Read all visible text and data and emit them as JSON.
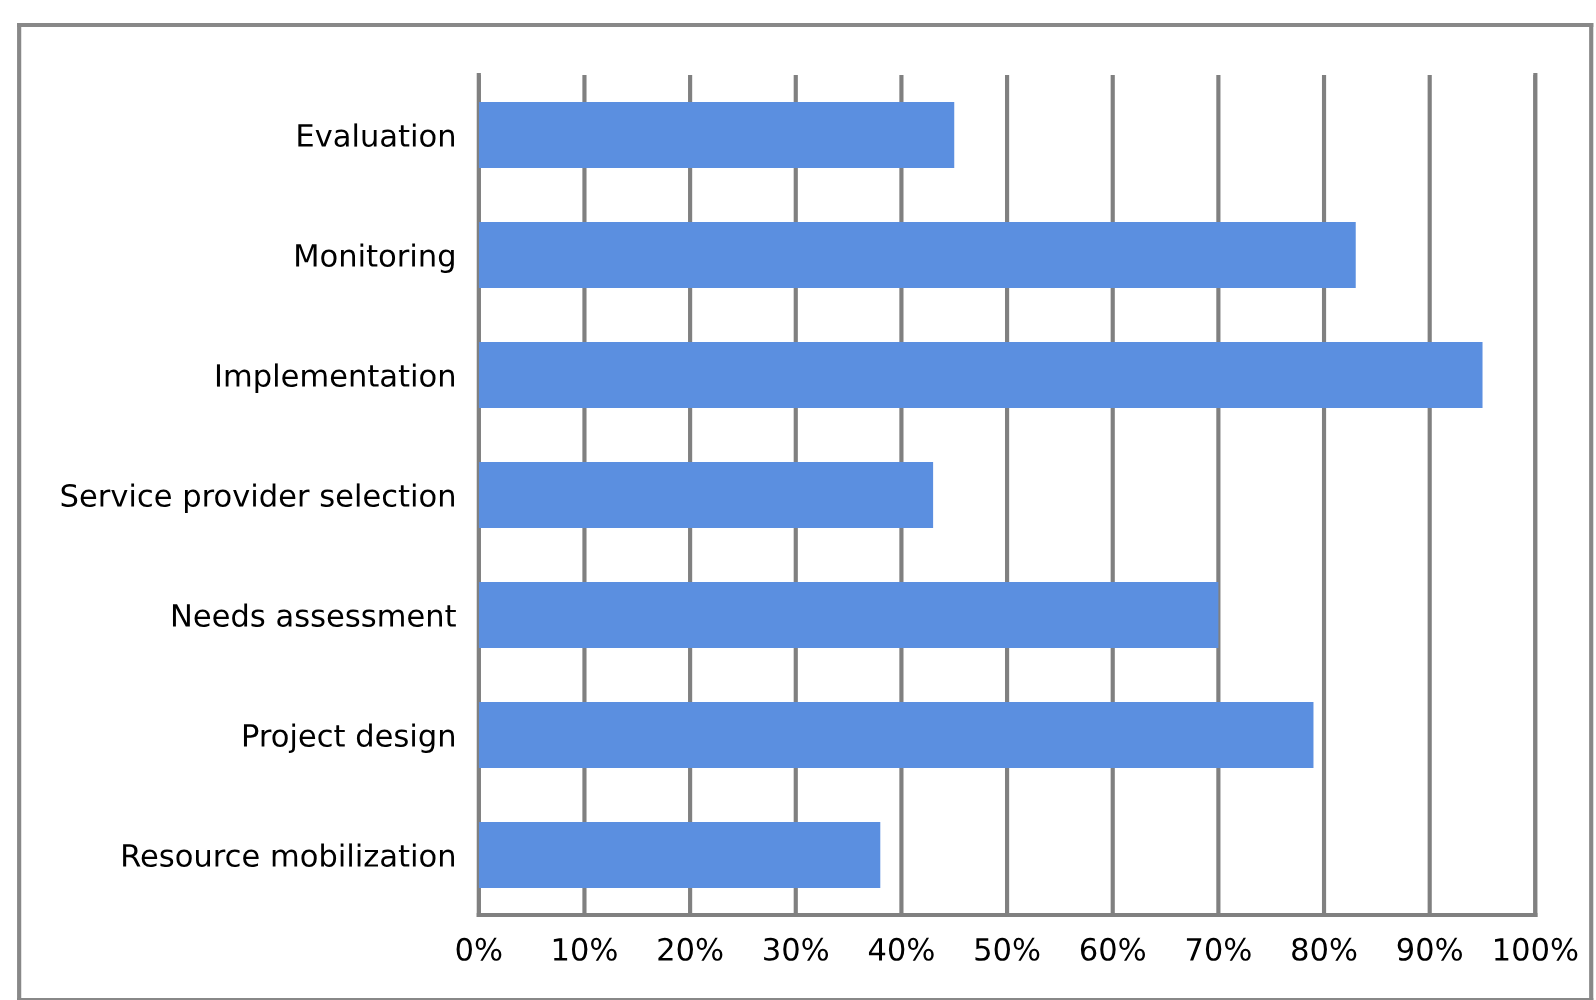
{
  "chart_data": {
    "type": "bar",
    "orientation": "horizontal",
    "categories": [
      "Evaluation",
      "Monitoring",
      "Implementation",
      "Service provider selection",
      "Needs assessment",
      "Project design",
      "Resource mobilization"
    ],
    "values": [
      45,
      83,
      95,
      43,
      70,
      79,
      38
    ],
    "color": "#5b8fe0",
    "xlim": [
      0,
      100
    ],
    "xticks": [
      {
        "value": 0,
        "label": "0%"
      },
      {
        "value": 10,
        "label": "10%"
      },
      {
        "value": 20,
        "label": "20%"
      },
      {
        "value": 30,
        "label": "30%"
      },
      {
        "value": 40,
        "label": "40%"
      },
      {
        "value": 50,
        "label": "50%"
      },
      {
        "value": 60,
        "label": "60%"
      },
      {
        "value": 70,
        "label": "70%"
      },
      {
        "value": 80,
        "label": "80%"
      },
      {
        "value": 90,
        "label": "90%"
      },
      {
        "value": 100,
        "label": "100%"
      }
    ],
    "grid": "x"
  }
}
